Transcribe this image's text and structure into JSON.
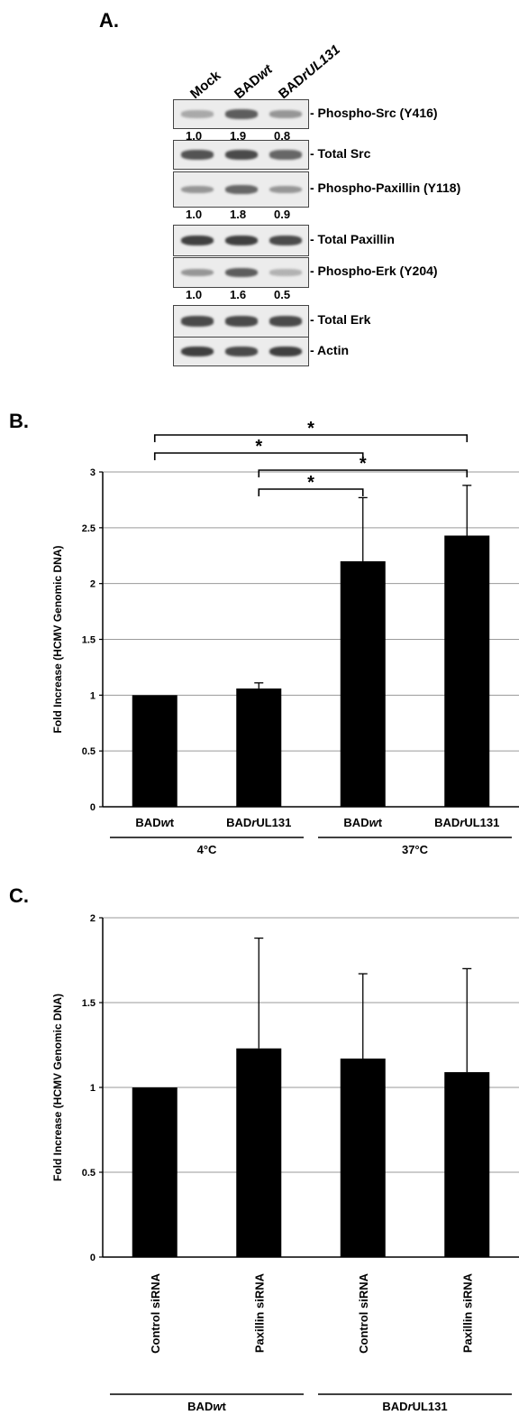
{
  "panelA": {
    "letter": "A.",
    "lanes": [
      "Mock",
      "BAD",
      "BAD"
    ],
    "lane_suffix": [
      "",
      "wt",
      "rUL131"
    ],
    "blots": [
      {
        "label": "- Phospho-Src (Y416)",
        "quant": [
          "1.0",
          "1.9",
          "0.8"
        ],
        "intensity": [
          0.35,
          0.75,
          0.45
        ]
      },
      {
        "label": "- Total Src",
        "quant": null,
        "intensity": [
          0.8,
          0.85,
          0.7
        ]
      },
      {
        "label": "- Phospho-Paxillin (Y118)",
        "quant": [
          "1.0",
          "1.8",
          "0.9"
        ],
        "intensity": [
          0.45,
          0.7,
          0.45
        ]
      },
      {
        "label": "- Total Paxillin",
        "quant": null,
        "intensity": [
          0.9,
          0.9,
          0.85
        ]
      },
      {
        "label": "- Phospho-Erk (Y204)",
        "quant": [
          "1.0",
          "1.6",
          "0.5"
        ],
        "intensity": [
          0.45,
          0.75,
          0.3
        ]
      },
      {
        "label": "- Total Erk",
        "quant": null,
        "intensity": [
          0.85,
          0.85,
          0.85
        ]
      },
      {
        "label": "- Actin",
        "quant": null,
        "intensity": [
          0.9,
          0.85,
          0.9
        ]
      }
    ]
  },
  "chart_data": [
    {
      "panel": "B.",
      "type": "bar",
      "ylabel": "Fold Increase (HCMV Genomic DNA)",
      "ylim": [
        0,
        3
      ],
      "yticks": [
        "0",
        "0.5",
        "1",
        "1.5",
        "2",
        "2.5",
        "3"
      ],
      "categories": [
        "BADwt",
        "BADrUL131",
        "BADwt",
        "BADrUL131"
      ],
      "category_parts": [
        [
          "BAD",
          "wt"
        ],
        [
          "BAD",
          "rUL131"
        ],
        [
          "BAD",
          "wt"
        ],
        [
          "BAD",
          "rUL131"
        ]
      ],
      "values": [
        1.0,
        1.06,
        2.2,
        2.43
      ],
      "errors": [
        0,
        0.05,
        0.57,
        0.45
      ],
      "groups": [
        {
          "label": "4°C",
          "start": 0,
          "end": 1
        },
        {
          "label": "37°C",
          "start": 2,
          "end": 3
        }
      ],
      "significance": [
        {
          "from": 0,
          "to": 3,
          "label": "*"
        },
        {
          "from": 0,
          "to": 2,
          "label": "*"
        },
        {
          "from": 1,
          "to": 3,
          "label": "*"
        },
        {
          "from": 1,
          "to": 2,
          "label": "*"
        }
      ],
      "grid": true
    },
    {
      "panel": "C.",
      "type": "bar",
      "ylabel": "Fold Increase (HCMV Genomic DNA)",
      "ylim": [
        0,
        2
      ],
      "yticks": [
        "0",
        "0.5",
        "1",
        "1.5",
        "2"
      ],
      "categories": [
        "Control siRNA",
        "Paxillin siRNA",
        "Control siRNA",
        "Paxillin siRNA"
      ],
      "values": [
        1.0,
        1.23,
        1.17,
        1.09
      ],
      "errors": [
        0,
        0.65,
        0.5,
        0.61
      ],
      "groups": [
        {
          "label": "BADwt",
          "parts": [
            "BAD",
            "wt"
          ],
          "start": 0,
          "end": 1
        },
        {
          "label": "BADrUL131",
          "parts": [
            "BAD",
            "rUL131"
          ],
          "start": 2,
          "end": 3
        }
      ],
      "grid": true
    }
  ]
}
